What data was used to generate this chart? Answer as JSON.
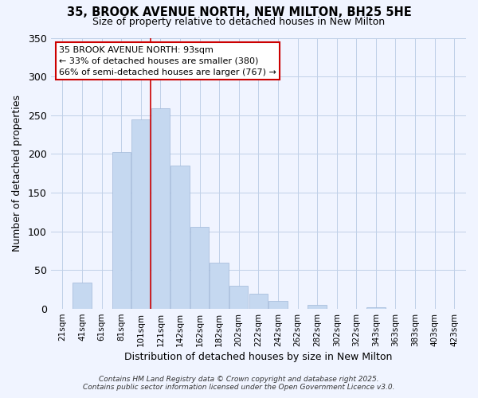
{
  "title": "35, BROOK AVENUE NORTH, NEW MILTON, BH25 5HE",
  "subtitle": "Size of property relative to detached houses in New Milton",
  "xlabel": "Distribution of detached houses by size in New Milton",
  "ylabel": "Number of detached properties",
  "categories": [
    "21sqm",
    "41sqm",
    "61sqm",
    "81sqm",
    "101sqm",
    "121sqm",
    "142sqm",
    "162sqm",
    "182sqm",
    "202sqm",
    "222sqm",
    "242sqm",
    "262sqm",
    "282sqm",
    "302sqm",
    "322sqm",
    "343sqm",
    "363sqm",
    "383sqm",
    "403sqm",
    "423sqm"
  ],
  "values": [
    0,
    34,
    0,
    203,
    245,
    259,
    185,
    106,
    60,
    30,
    20,
    10,
    0,
    5,
    0,
    0,
    2,
    0,
    0,
    0,
    0
  ],
  "bar_color": "#c5d8f0",
  "bar_edge_color": "#a0b8d8",
  "vline_x_index": 4.5,
  "annotation_title": "35 BROOK AVENUE NORTH: 93sqm",
  "annotation_line1": "← 33% of detached houses are smaller (380)",
  "annotation_line2": "66% of semi-detached houses are larger (767) →",
  "annotation_box_color": "#ffffff",
  "annotation_border_color": "#cc0000",
  "vline_color": "#cc0000",
  "ylim": [
    0,
    350
  ],
  "yticks": [
    0,
    50,
    100,
    150,
    200,
    250,
    300,
    350
  ],
  "footer1": "Contains HM Land Registry data © Crown copyright and database right 2025.",
  "footer2": "Contains public sector information licensed under the Open Government Licence v3.0.",
  "background_color": "#f0f4ff",
  "grid_color": "#c0d0e8"
}
